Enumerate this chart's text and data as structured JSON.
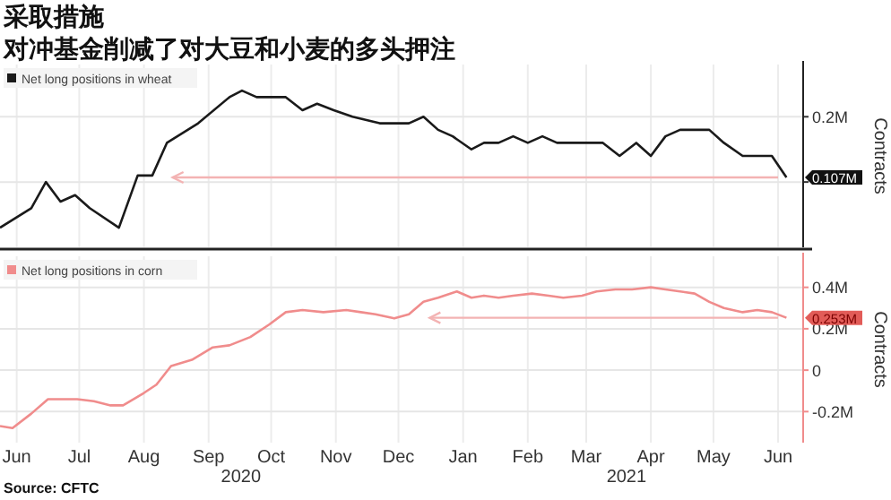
{
  "chart_data": [
    {
      "type": "line",
      "title": "采取措施",
      "subtitle": "对冲基金削减了对大豆和小麦的多头押注",
      "ylabel": "Contracts",
      "xlim": [
        "2020-05-24",
        "2021-06-13"
      ],
      "xticks": [
        {
          "value": "2020-06-01",
          "label": null
        },
        {
          "value": "2020-07-01",
          "label": null
        },
        {
          "value": "2020-08-01",
          "label": null
        },
        {
          "value": "2020-09-01",
          "label": null
        },
        {
          "value": "2020-10-01",
          "label": null
        },
        {
          "value": "2020-11-01",
          "label": null
        },
        {
          "value": "2020-12-01",
          "label": null
        },
        {
          "value": "2021-01-01",
          "label": null
        },
        {
          "value": "2021-02-01",
          "label": null
        },
        {
          "value": "2021-03-01",
          "label": null
        },
        {
          "value": "2021-04-01",
          "label": null
        },
        {
          "value": "2021-05-01",
          "label": null
        },
        {
          "value": "2021-06-01",
          "label": null
        }
      ],
      "ylim": [
        0,
        0.28
      ],
      "yticks": [
        {
          "value": 0.1,
          "label": null
        },
        {
          "value": 0.107,
          "label": "0.107M"
        },
        {
          "value": 0.2,
          "label": "0.2M"
        }
      ],
      "tick_labels": "y",
      "grid": true,
      "legend": "top left",
      "ref_lines": [
        {
          "axis": "y",
          "value": 0.107,
          "color": "#f3b3b3"
        }
      ],
      "series": [
        {
          "name": "Net long positions in wheat",
          "color": "#1a1a1a",
          "x": [
            "2020-05-24",
            "2020-06-08",
            "2020-06-15",
            "2020-06-22",
            "2020-06-29",
            "2020-07-06",
            "2020-07-20",
            "2020-07-29",
            "2020-08-05",
            "2020-08-12",
            "2020-08-27",
            "2020-09-11",
            "2020-09-17",
            "2020-09-24",
            "2020-10-01",
            "2020-10-08",
            "2020-10-16",
            "2020-10-23",
            "2020-10-31",
            "2020-11-09",
            "2020-11-22",
            "2020-11-29",
            "2020-12-06",
            "2020-12-13",
            "2020-12-20",
            "2020-12-27",
            "2021-01-05",
            "2021-01-11",
            "2021-01-18",
            "2021-01-25",
            "2021-02-01",
            "2021-02-08",
            "2021-02-15",
            "2021-02-23",
            "2021-03-02",
            "2021-03-09",
            "2021-03-17",
            "2021-03-25",
            "2021-04-01",
            "2021-04-08",
            "2021-04-15",
            "2021-04-22",
            "2021-04-29",
            "2021-05-06",
            "2021-05-15",
            "2021-05-21",
            "2021-05-29",
            "2021-06-05"
          ],
          "values": [
            0.03,
            0.06,
            0.1,
            0.07,
            0.08,
            0.06,
            0.03,
            0.11,
            0.11,
            0.16,
            0.19,
            0.23,
            0.24,
            0.23,
            0.23,
            0.23,
            0.21,
            0.22,
            0.21,
            0.2,
            0.19,
            0.19,
            0.19,
            0.2,
            0.18,
            0.17,
            0.15,
            0.16,
            0.16,
            0.17,
            0.16,
            0.17,
            0.16,
            0.16,
            0.16,
            0.16,
            0.14,
            0.16,
            0.14,
            0.17,
            0.18,
            0.18,
            0.18,
            0.16,
            0.14,
            0.14,
            0.14,
            0.107
          ]
        }
      ]
    },
    {
      "type": "line",
      "ylabel": "Contracts",
      "xlim": [
        "2020-05-24",
        "2021-06-13"
      ],
      "xticks": [
        {
          "value": "2020-06-01",
          "label": "Jun"
        },
        {
          "value": "2020-07-01",
          "label": "Jul"
        },
        {
          "value": "2020-08-01",
          "label": "Aug"
        },
        {
          "value": "2020-09-01",
          "label": "Sep"
        },
        {
          "value": "2020-10-01",
          "label": "Oct"
        },
        {
          "value": "2020-11-01",
          "label": "Nov"
        },
        {
          "value": "2020-12-01",
          "label": "Dec"
        },
        {
          "value": "2021-01-01",
          "label": "Jan"
        },
        {
          "value": "2021-02-01",
          "label": "Feb"
        },
        {
          "value": "2021-03-01",
          "label": "Mar"
        },
        {
          "value": "2021-04-01",
          "label": "Apr"
        },
        {
          "value": "2021-05-01",
          "label": "May"
        },
        {
          "value": "2021-06-01",
          "label": "Jun"
        }
      ],
      "ylim": [
        -0.35,
        0.55
      ],
      "yticks": [
        {
          "value": -0.2,
          "label": "-0.2M"
        },
        {
          "value": 0,
          "label": "0"
        },
        {
          "value": 0.2,
          "label": "0.2M"
        },
        {
          "value": 0.253,
          "label": "0.253M"
        },
        {
          "value": 0.4,
          "label": "0.4M"
        }
      ],
      "grid": true,
      "legend": "top left",
      "ref_lines": [
        {
          "axis": "y",
          "value": 0.253,
          "color": "#f3b3b3"
        }
      ],
      "annotations": [
        "2020",
        "2021",
        "Source: CFTC"
      ],
      "series": [
        {
          "name": "Net long positions in corn",
          "color": "#f08c8c",
          "x": [
            "2020-05-24",
            "2020-05-30",
            "2020-06-08",
            "2020-06-16",
            "2020-06-30",
            "2020-07-08",
            "2020-07-16",
            "2020-07-22",
            "2020-08-01",
            "2020-08-07",
            "2020-08-14",
            "2020-08-24",
            "2020-09-03",
            "2020-09-11",
            "2020-09-21",
            "2020-09-30",
            "2020-10-08",
            "2020-10-16",
            "2020-10-26",
            "2020-11-06",
            "2020-11-13",
            "2020-11-20",
            "2020-11-29",
            "2020-12-06",
            "2020-12-13",
            "2020-12-20",
            "2020-12-29",
            "2021-01-05",
            "2021-01-11",
            "2021-01-18",
            "2021-01-25",
            "2021-02-03",
            "2021-02-11",
            "2021-02-18",
            "2021-02-27",
            "2021-03-06",
            "2021-03-15",
            "2021-03-23",
            "2021-04-01",
            "2021-04-08",
            "2021-04-15",
            "2021-04-22",
            "2021-04-29",
            "2021-05-06",
            "2021-05-15",
            "2021-05-22",
            "2021-05-29",
            "2021-06-05"
          ],
          "values": [
            -0.27,
            -0.28,
            -0.21,
            -0.14,
            -0.14,
            -0.15,
            -0.17,
            -0.17,
            -0.11,
            -0.07,
            0.02,
            0.05,
            0.11,
            0.12,
            0.16,
            0.22,
            0.28,
            0.29,
            0.28,
            0.29,
            0.28,
            0.27,
            0.25,
            0.27,
            0.33,
            0.35,
            0.38,
            0.35,
            0.36,
            0.35,
            0.36,
            0.37,
            0.36,
            0.35,
            0.36,
            0.38,
            0.39,
            0.39,
            0.4,
            0.39,
            0.38,
            0.37,
            0.33,
            0.3,
            0.28,
            0.29,
            0.28,
            0.253
          ]
        }
      ]
    }
  ]
}
